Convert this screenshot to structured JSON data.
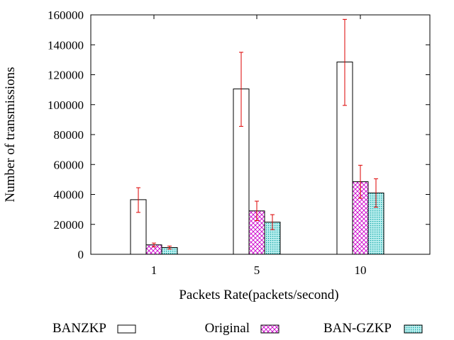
{
  "chart_data": {
    "type": "bar",
    "xlabel": "Packets Rate(packets/second)",
    "ylabel": "Number of transmissions",
    "ylim": [
      0,
      160000
    ],
    "yticks": [
      0,
      20000,
      40000,
      60000,
      80000,
      100000,
      120000,
      140000,
      160000
    ],
    "categories": [
      "1",
      "5",
      "10"
    ],
    "legend_position": "bottom",
    "series": [
      {
        "name": "BANZKP",
        "values": [
          36500,
          110500,
          128500
        ],
        "err_low": [
          28000,
          85500,
          99500
        ],
        "err_high": [
          44500,
          135000,
          157000
        ],
        "fill": "plain",
        "color": "#000000"
      },
      {
        "name": "Original",
        "values": [
          6300,
          29000,
          48500
        ],
        "err_low": [
          5000,
          22500,
          37500
        ],
        "err_high": [
          7500,
          35500,
          59500
        ],
        "fill": "crosshatch",
        "color": "#cc00cc"
      },
      {
        "name": "BAN-GZKP",
        "values": [
          4500,
          21500,
          41000
        ],
        "err_low": [
          3500,
          16500,
          31500
        ],
        "err_high": [
          5500,
          26500,
          50500
        ],
        "fill": "dots",
        "color": "#00aaaa"
      }
    ],
    "error_bar_color": "#dd0000"
  }
}
